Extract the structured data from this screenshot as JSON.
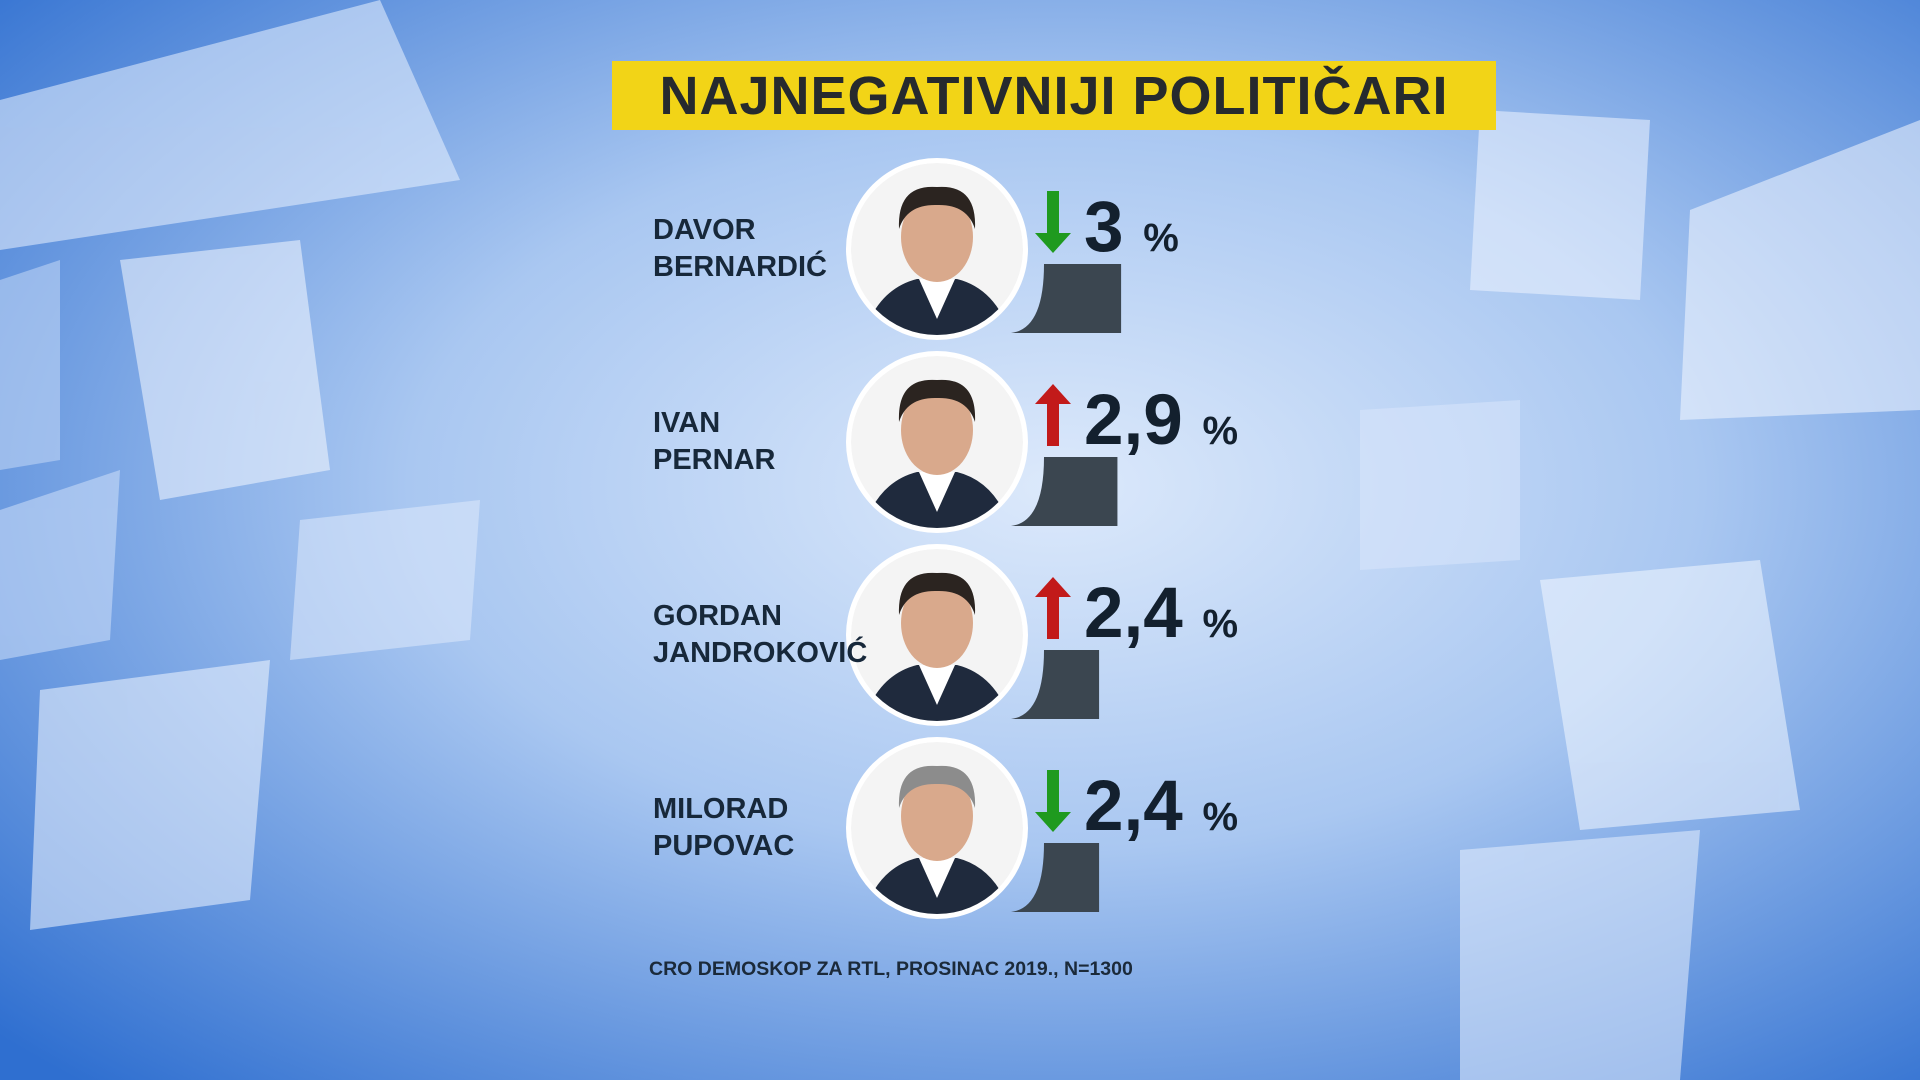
{
  "chart_data": {
    "type": "bar",
    "title": "NAJNEGATIVNIJI POLITIČARI",
    "categories": [
      "DAVOR BERNARDIĆ",
      "IVAN PERNAR",
      "GORDAN JANDROKOVIĆ",
      "MILORAD PUPOVAC"
    ],
    "values": [
      3,
      2.9,
      2.4,
      2.4
    ],
    "value_labels": [
      "3 %",
      "2,9 %",
      "2,4 %",
      "2,4 %"
    ],
    "trend": [
      "down",
      "up",
      "up",
      "down"
    ],
    "color": "#3b4650",
    "source": "CRO DEMOSKOP ZA RTL, PROSINAC 2019., N=1300"
  }
}
